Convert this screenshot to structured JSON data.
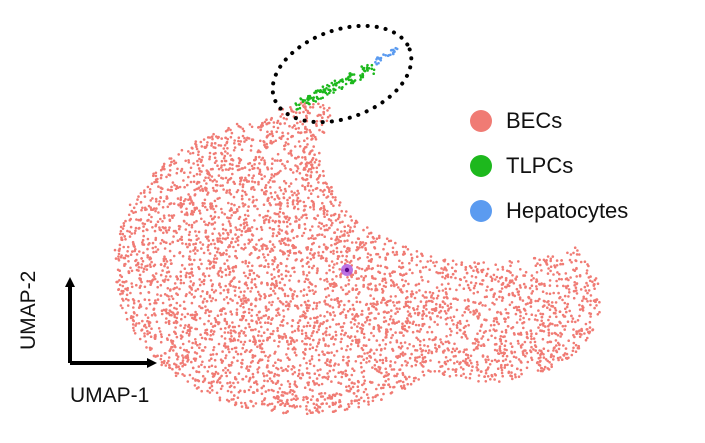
{
  "chart_data": {
    "type": "scatter",
    "title": "",
    "xlabel": "UMAP-1",
    "ylabel": "UMAP-2",
    "legend_position": "right",
    "axes_style": "arrow-indicators-bottom-left",
    "series": [
      {
        "name": "BECs",
        "color": "#f07b74",
        "point_count": 4700,
        "region": "large crescent-shaped main cluster"
      },
      {
        "name": "TLPCs",
        "color": "#1db81d",
        "point_count": 120,
        "region": "thin stripe at top of cluster, inside dotted ellipse"
      },
      {
        "name": "Hepatocytes",
        "color": "#5b9bf0",
        "point_count": 25,
        "region": "tip of stripe at upper right, inside dotted ellipse"
      }
    ],
    "annotations": [
      {
        "type": "dotted-ellipse",
        "encloses": [
          "TLPCs",
          "Hepatocytes"
        ]
      },
      {
        "type": "highlighted-point",
        "color": "#9b30c8"
      }
    ]
  },
  "legend": {
    "items": [
      {
        "label": "BECs",
        "color": "#f07b74"
      },
      {
        "label": "TLPCs",
        "color": "#1db81d"
      },
      {
        "label": "Hepatocytes",
        "color": "#5b9bf0"
      }
    ]
  },
  "axes": {
    "x_label": "UMAP-1",
    "y_label": "UMAP-2"
  }
}
